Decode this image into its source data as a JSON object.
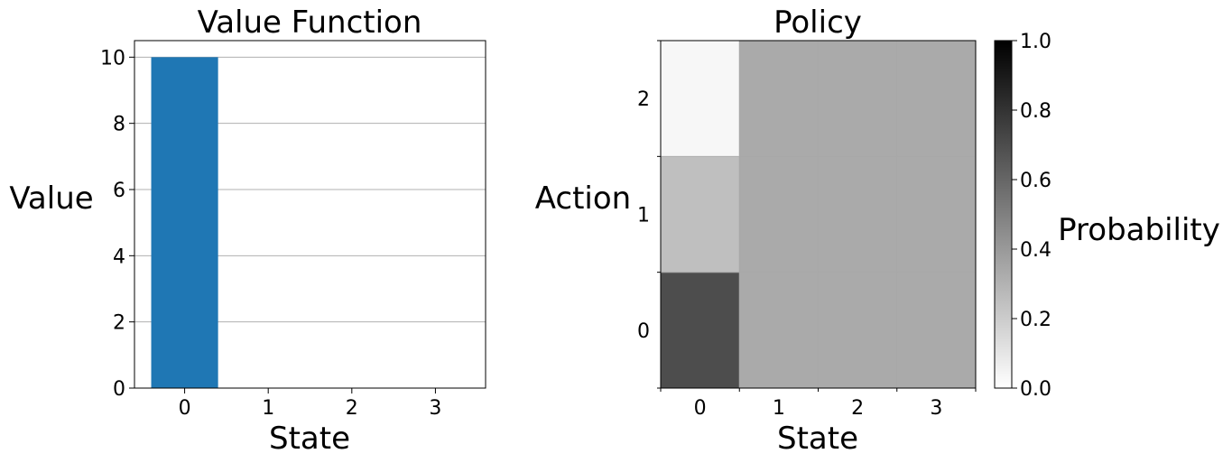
{
  "chart_data": [
    {
      "type": "bar",
      "title": "Value Function",
      "xlabel": "State",
      "ylabel": "Value",
      "categories": [
        "0",
        "1",
        "2",
        "3"
      ],
      "values": [
        10.0,
        0,
        0,
        0
      ],
      "ylim": [
        0,
        10.5
      ],
      "yticks": [
        0,
        2,
        4,
        6,
        8,
        10
      ],
      "grid": "y",
      "color": "#1f77b4"
    },
    {
      "type": "heatmap",
      "title": "Policy",
      "xlabel": "State",
      "ylabel": "Action",
      "x_categories": [
        "0",
        "1",
        "2",
        "3"
      ],
      "y_categories": [
        "0",
        "1",
        "2"
      ],
      "values": [
        [
          0.7,
          0.25,
          0.03
        ],
        [
          0.3333,
          0.3333,
          0.3333
        ],
        [
          0.3333,
          0.3333,
          0.3333
        ],
        [
          0.3333,
          0.3333,
          0.3333
        ]
      ],
      "colormap": "gray_r",
      "grid": true,
      "colorbar": {
        "label": "Probability",
        "range": [
          0.0,
          1.0
        ],
        "ticks": [
          "0.0",
          "0.2",
          "0.4",
          "0.6",
          "0.8",
          "1.0"
        ]
      }
    }
  ]
}
